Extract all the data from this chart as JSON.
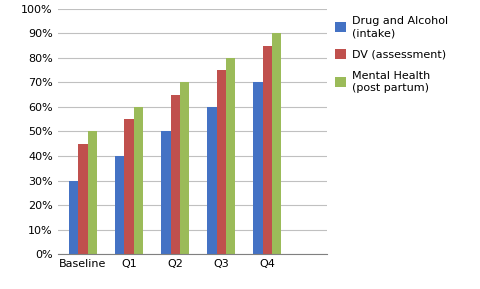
{
  "categories": [
    "Baseline",
    "Q1",
    "Q2",
    "Q3",
    "Q4"
  ],
  "series": [
    {
      "name": "Drug and Alcohol\n(intake)",
      "values": [
        0.3,
        0.4,
        0.5,
        0.6,
        0.7
      ],
      "color": "#4472C4"
    },
    {
      "name": "DV (assessment)",
      "values": [
        0.45,
        0.55,
        0.65,
        0.75,
        0.85
      ],
      "color": "#C0504D"
    },
    {
      "name": "Mental Health\n(post partum)",
      "values": [
        0.5,
        0.6,
        0.7,
        0.8,
        0.9
      ],
      "color": "#9BBB59"
    }
  ],
  "ylim": [
    0.0,
    1.0
  ],
  "yticks": [
    0.0,
    0.1,
    0.2,
    0.3,
    0.4,
    0.5,
    0.6,
    0.7,
    0.8,
    0.9,
    1.0
  ],
  "background_color": "#FFFFFF",
  "plot_area_color": "#FFFFFF",
  "grid_color": "#C0C0C0",
  "legend_fontsize": 8,
  "tick_fontsize": 8,
  "bar_width": 0.2,
  "xlim_left": -0.55,
  "xlim_right": 5.3
}
